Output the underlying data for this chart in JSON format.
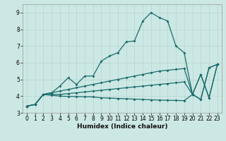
{
  "x": [
    0,
    1,
    2,
    3,
    4,
    5,
    6,
    7,
    8,
    9,
    10,
    11,
    12,
    13,
    14,
    15,
    16,
    17,
    18,
    19,
    20,
    21,
    22,
    23
  ],
  "line1": [
    3.4,
    3.5,
    4.1,
    4.2,
    4.6,
    5.1,
    4.7,
    5.2,
    5.2,
    6.1,
    6.4,
    6.6,
    7.25,
    7.3,
    8.5,
    9.0,
    8.7,
    8.5,
    7.0,
    6.6,
    4.1,
    5.3,
    3.9,
    5.9
  ],
  "line2": [
    3.4,
    3.5,
    4.1,
    4.2,
    4.3,
    4.4,
    4.5,
    4.6,
    4.7,
    4.8,
    4.9,
    5.0,
    5.1,
    5.2,
    5.3,
    5.4,
    5.5,
    5.55,
    5.6,
    5.65,
    4.1,
    5.3,
    3.9,
    5.9
  ],
  "line3": [
    3.4,
    3.5,
    4.1,
    4.1,
    4.1,
    4.15,
    4.2,
    4.25,
    4.3,
    4.35,
    4.4,
    4.45,
    4.5,
    4.55,
    4.6,
    4.65,
    4.7,
    4.75,
    4.8,
    4.85,
    4.1,
    3.8,
    5.7,
    5.9
  ],
  "line4": [
    3.4,
    3.5,
    4.1,
    4.05,
    4.0,
    3.98,
    3.97,
    3.96,
    3.95,
    3.9,
    3.88,
    3.86,
    3.84,
    3.82,
    3.8,
    3.78,
    3.76,
    3.75,
    3.74,
    3.73,
    4.1,
    3.8,
    5.7,
    5.9
  ],
  "bg_color": "#cce8e4",
  "line_color": "#1a6b6b",
  "grid_color": "#b8d4d0",
  "xlabel": "Humidex (Indice chaleur)",
  "ylim": [
    3,
    9.5
  ],
  "xlim": [
    -0.5,
    23.5
  ],
  "yticks": [
    3,
    4,
    5,
    6,
    7,
    8,
    9
  ],
  "xticks": [
    0,
    1,
    2,
    3,
    4,
    5,
    6,
    7,
    8,
    9,
    10,
    11,
    12,
    13,
    14,
    15,
    16,
    17,
    18,
    19,
    20,
    21,
    22,
    23
  ]
}
